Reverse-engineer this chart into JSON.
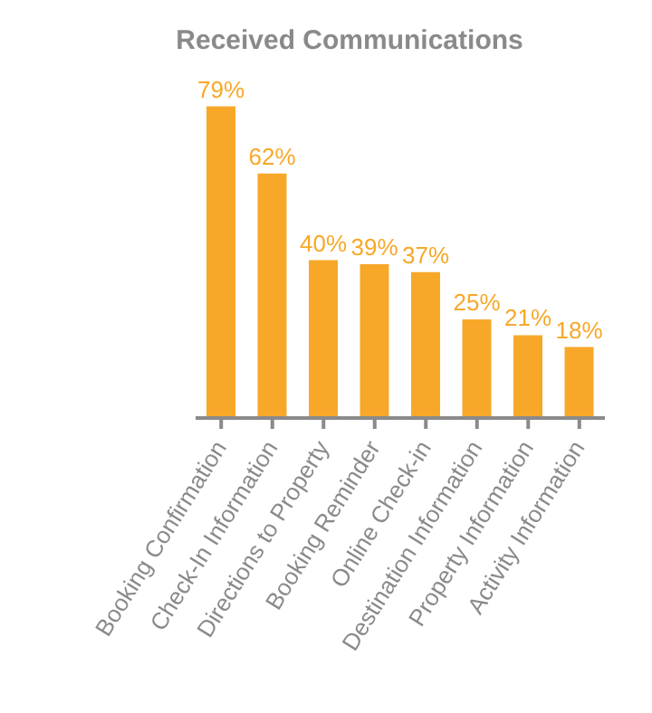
{
  "chart_data": {
    "type": "bar",
    "title": "Received Communications",
    "categories": [
      "Booking Confirmation",
      "Check-In Information",
      "Directions to Property",
      "Booking Reminder",
      "Online Check-in",
      "Destination Information",
      "Property Information",
      "Activity Information"
    ],
    "values": [
      79,
      62,
      40,
      39,
      37,
      25,
      21,
      18
    ],
    "value_labels": [
      "79%",
      "62%",
      "40%",
      "39%",
      "37%",
      "25%",
      "21%",
      "18%"
    ],
    "color": "#f7a829"
  }
}
